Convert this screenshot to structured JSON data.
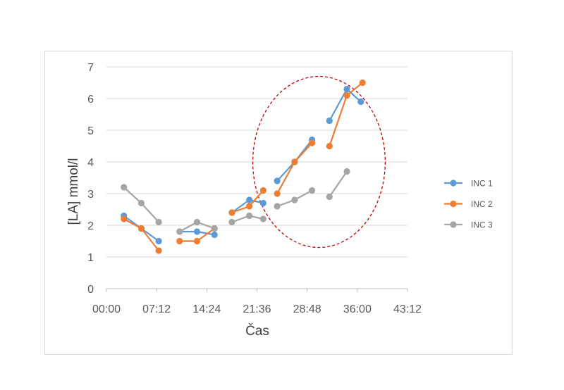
{
  "chart_data": {
    "type": "line",
    "title": "",
    "xlabel": "Čas",
    "ylabel": "[LA] mmol/l",
    "x_unit": "mm:ss",
    "xlim": [
      "00:00",
      "43:12"
    ],
    "ylim": [
      0,
      7
    ],
    "x_ticks": [
      "00:00",
      "07:12",
      "14:24",
      "21:36",
      "28:48",
      "36:00",
      "43:12"
    ],
    "y_ticks": [
      0,
      1,
      2,
      3,
      4,
      5,
      6,
      7
    ],
    "grid": "horizontal",
    "legend_position": "right",
    "series": [
      {
        "name": "INC 1",
        "color": "#5b9bd5",
        "segments": [
          [
            [
              "02:30",
              2.3
            ],
            [
              "05:00",
              1.9
            ],
            [
              "07:30",
              1.5
            ]
          ],
          [
            [
              "10:30",
              1.8
            ],
            [
              "13:00",
              1.8
            ],
            [
              "15:30",
              1.7
            ]
          ],
          [
            [
              "18:00",
              2.4
            ],
            [
              "20:30",
              2.8
            ],
            [
              "22:30",
              2.7
            ]
          ],
          [
            [
              "24:30",
              3.4
            ],
            [
              "27:00",
              4.0
            ],
            [
              "29:30",
              4.7
            ]
          ],
          [
            [
              "32:00",
              5.3
            ],
            [
              "34:30",
              6.3
            ],
            [
              "36:30",
              5.9
            ]
          ]
        ]
      },
      {
        "name": "INC 2",
        "color": "#ed7d31",
        "segments": [
          [
            [
              "02:30",
              2.2
            ],
            [
              "05:00",
              1.9
            ],
            [
              "07:30",
              1.2
            ]
          ],
          [
            [
              "10:30",
              1.5
            ],
            [
              "13:00",
              1.5
            ],
            [
              "15:30",
              1.9
            ]
          ],
          [
            [
              "18:00",
              2.4
            ],
            [
              "20:30",
              2.6
            ],
            [
              "22:30",
              3.1
            ]
          ],
          [
            [
              "24:30",
              3.0
            ],
            [
              "27:00",
              4.0
            ],
            [
              "29:30",
              4.6
            ]
          ],
          [
            [
              "32:00",
              4.5
            ],
            [
              "34:30",
              6.1
            ],
            [
              "36:45",
              6.5
            ]
          ]
        ]
      },
      {
        "name": "INC 3",
        "color": "#a5a5a5",
        "segments": [
          [
            [
              "02:30",
              3.2
            ],
            [
              "05:00",
              2.7
            ],
            [
              "07:30",
              2.1
            ]
          ],
          [
            [
              "10:30",
              1.8
            ],
            [
              "13:00",
              2.1
            ],
            [
              "15:30",
              1.9
            ]
          ],
          [
            [
              "18:00",
              2.1
            ],
            [
              "20:30",
              2.3
            ],
            [
              "22:30",
              2.2
            ]
          ],
          [
            [
              "24:30",
              2.6
            ],
            [
              "27:00",
              2.8
            ],
            [
              "29:30",
              3.1
            ]
          ],
          [
            [
              "32:00",
              2.9
            ],
            [
              "34:30",
              3.7
            ]
          ]
        ]
      }
    ],
    "annotations": [
      {
        "type": "ellipse",
        "style": "dashed",
        "color": "#c00000",
        "x_range": [
          "21:00",
          "40:00"
        ],
        "y_range": [
          1.3,
          6.7
        ]
      }
    ]
  }
}
